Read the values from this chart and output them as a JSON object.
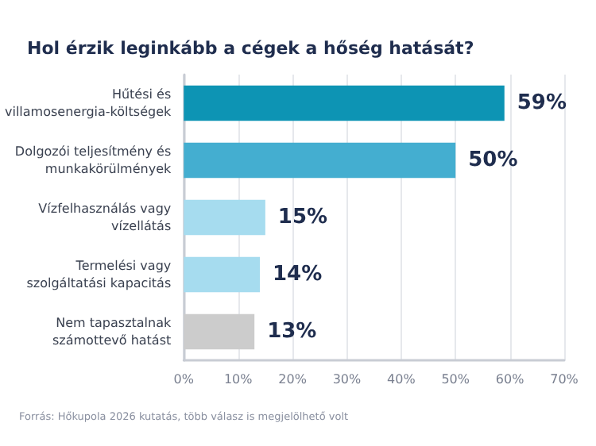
{
  "chart_data": {
    "type": "bar",
    "orientation": "horizontal",
    "title": "Hol érzik leginkább a cégek a hőség hatását?",
    "categories": [
      "Hűtési és\nvillamosenergia-költségek",
      "Dolgozói teljesítmény és\nmunkakörülmények",
      "Vízfelhasználás vagy\nvízellátás",
      "Termelési vagy\nszolgáltatási kapacitás",
      "Nem tapasztalnak\nszámottevő hatást"
    ],
    "values": [
      59,
      50,
      15,
      14,
      13
    ],
    "colors": [
      "#0d94b4",
      "#44aed0",
      "#a6dcef",
      "#a6dcef",
      "#cccccc"
    ],
    "value_labels": [
      "59%",
      "50%",
      "15%",
      "14%",
      "13%"
    ],
    "xlim": [
      0,
      70
    ],
    "xticks": [
      {
        "value": 0,
        "label": "0%"
      },
      {
        "value": 10,
        "label": "10%"
      },
      {
        "value": 20,
        "label": "20%"
      },
      {
        "value": 30,
        "label": "30%"
      },
      {
        "value": 40,
        "label": "40%"
      },
      {
        "value": 50,
        "label": "50%"
      },
      {
        "value": 60,
        "label": "60%"
      },
      {
        "value": 70,
        "label": "70%"
      }
    ],
    "grid": "x",
    "annotations": [
      "Forrás: Hőkupola 2026 kutatás, több válasz is megjelölhető volt"
    ]
  }
}
